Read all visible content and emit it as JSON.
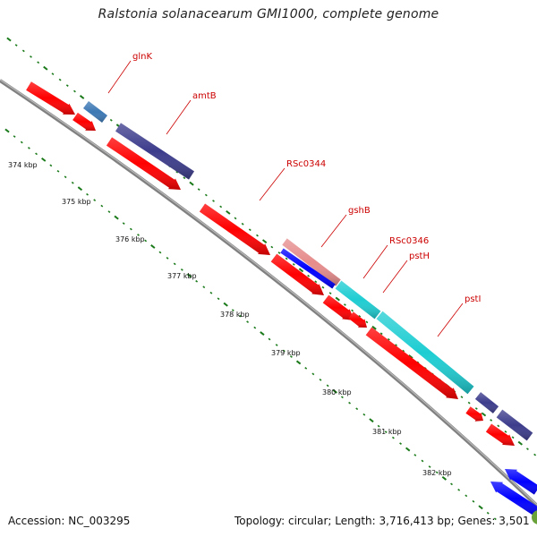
{
  "title": "Ralstonia solanacearum GMI1000, complete genome",
  "footer": {
    "accession": "Accession: NC_003295",
    "summary": "Topology: circular; Length: 3,716,413 bp; Genes: 3,501"
  },
  "scale": {
    "labels": [
      "374 kbp",
      "375 kbp",
      "376 kbp",
      "377 kbp",
      "378 kbp",
      "379 kbp",
      "380 kbp",
      "381 kbp",
      "382 kbp"
    ]
  },
  "gene_labels": [
    "glnK",
    "amtB",
    "RSc0344",
    "gshB",
    "RSc0346",
    "pstH",
    "pstI"
  ],
  "colors": {
    "backbone": "#808080",
    "forward_tick": "#1a7a1a",
    "cds_red": "#ff0000",
    "navy": "#3c3c8c",
    "steel_blue": "#3c78b4",
    "cyan": "#1ecdd2",
    "blue": "#0000ff",
    "salmon": "#e68c8c",
    "gene_label": "#cc0000"
  }
}
